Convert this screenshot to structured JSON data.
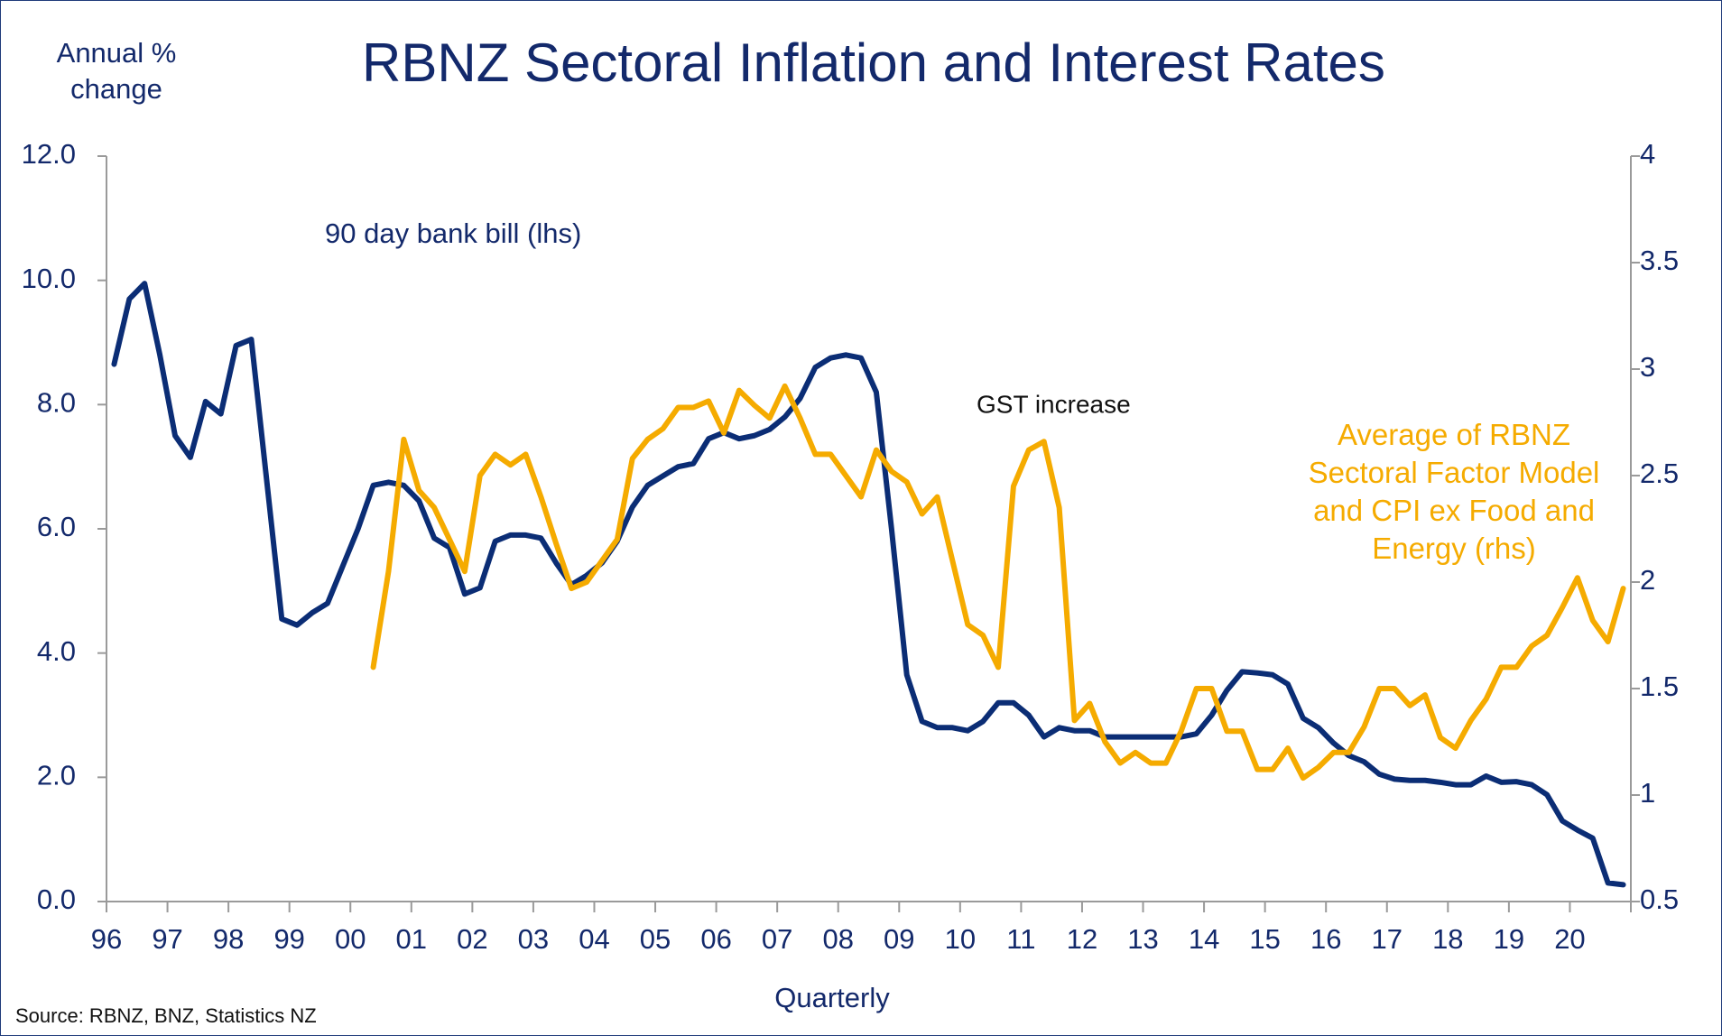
{
  "chart_data": {
    "type": "line",
    "title": "RBNZ Sectoral Inflation and Interest Rates",
    "y_label": "Annual % change",
    "x_label": "Quarterly",
    "source": "Source: RBNZ, BNZ, Statistics NZ",
    "annotations": [
      "GST increase"
    ],
    "categories": [
      "96",
      null,
      null,
      null,
      "97",
      null,
      null,
      null,
      "98",
      null,
      null,
      null,
      "99",
      null,
      null,
      null,
      "00",
      null,
      null,
      null,
      "01",
      null,
      null,
      null,
      "02",
      null,
      null,
      null,
      "03",
      null,
      null,
      null,
      "04",
      null,
      null,
      null,
      "05",
      null,
      null,
      null,
      "06",
      null,
      null,
      null,
      "07",
      null,
      null,
      null,
      "08",
      null,
      null,
      null,
      "09",
      null,
      null,
      null,
      "10",
      null,
      null,
      null,
      "11",
      null,
      null,
      null,
      "12",
      null,
      null,
      null,
      "13",
      null,
      null,
      null,
      "14",
      null,
      null,
      null,
      "15",
      null,
      null,
      null,
      "16",
      null,
      null,
      null,
      "17",
      null,
      null,
      null,
      "18",
      null,
      null,
      null,
      "19",
      null,
      null,
      null,
      "20",
      null,
      null,
      null
    ],
    "ylim": [
      0,
      12
    ],
    "yticks": [
      {
        "value": 0,
        "label": "0.0"
      },
      {
        "value": 2,
        "label": "2.0"
      },
      {
        "value": 4,
        "label": "4.0"
      },
      {
        "value": 6,
        "label": "6.0"
      },
      {
        "value": 8,
        "label": "8.0"
      },
      {
        "value": 10,
        "label": "10.0"
      },
      {
        "value": 12,
        "label": "12.0"
      }
    ],
    "y2lim": [
      0.5,
      4
    ],
    "y2ticks": [
      0.5,
      1,
      1.5,
      2,
      2.5,
      3,
      3.5,
      4
    ],
    "grid": false,
    "series": [
      {
        "name": "90 day bank bill (lhs)",
        "color": "#0b2d75",
        "axis": "y",
        "values": [
          8.65,
          9.7,
          9.95,
          8.8,
          7.5,
          7.15,
          8.05,
          7.85,
          8.95,
          9.05,
          6.8,
          4.55,
          4.45,
          4.65,
          4.8,
          5.4,
          6.0,
          6.7,
          6.75,
          6.7,
          6.45,
          5.85,
          5.7,
          4.95,
          5.05,
          5.8,
          5.9,
          5.9,
          5.85,
          5.45,
          5.1,
          5.25,
          5.45,
          5.8,
          6.35,
          6.7,
          6.85,
          7.0,
          7.05,
          7.45,
          7.55,
          7.45,
          7.5,
          7.6,
          7.8,
          8.1,
          8.6,
          8.75,
          8.8,
          8.75,
          8.2,
          6.0,
          3.65,
          2.9,
          2.8,
          2.8,
          2.75,
          2.9,
          3.2,
          3.2,
          3.0,
          2.65,
          2.8,
          2.75,
          2.75,
          2.65,
          2.65,
          2.65,
          2.65,
          2.65,
          2.65,
          2.7,
          3.0,
          3.4,
          3.7,
          3.68,
          3.65,
          3.5,
          2.95,
          2.8,
          2.55,
          2.35,
          2.25,
          2.05,
          1.97,
          1.95,
          1.95,
          1.92,
          1.88,
          1.88,
          2.02,
          1.92,
          1.93,
          1.88,
          1.72,
          1.3,
          1.15,
          1.02,
          0.3,
          0.27
        ]
      },
      {
        "name": "Average of RBNZ Sectoral Factor Model and CPI ex Food and Energy (rhs)",
        "color": "#f5ab00",
        "axis": "y2",
        "values": [
          null,
          null,
          null,
          null,
          null,
          null,
          null,
          null,
          null,
          null,
          null,
          null,
          null,
          null,
          null,
          null,
          null,
          1.6,
          2.05,
          2.67,
          2.43,
          2.35,
          2.2,
          2.05,
          2.5,
          2.6,
          2.55,
          2.6,
          2.4,
          2.18,
          1.97,
          2.0,
          2.1,
          2.2,
          2.58,
          2.67,
          2.72,
          2.82,
          2.82,
          2.85,
          2.7,
          2.9,
          2.83,
          2.77,
          2.92,
          2.77,
          2.6,
          2.6,
          2.5,
          2.4,
          2.62,
          2.52,
          2.47,
          2.32,
          2.4,
          2.1,
          1.8,
          1.75,
          1.6,
          2.45,
          2.62,
          2.66,
          2.35,
          1.35,
          1.43,
          1.25,
          1.15,
          1.2,
          1.15,
          1.15,
          1.3,
          1.5,
          1.5,
          1.3,
          1.3,
          1.12,
          1.12,
          1.22,
          1.08,
          1.13,
          1.2,
          1.2,
          1.32,
          1.5,
          1.5,
          1.42,
          1.47,
          1.27,
          1.22,
          1.35,
          1.45,
          1.6,
          1.6,
          1.7,
          1.75,
          1.88,
          2.02,
          1.82,
          1.72,
          1.97
        ]
      }
    ]
  }
}
